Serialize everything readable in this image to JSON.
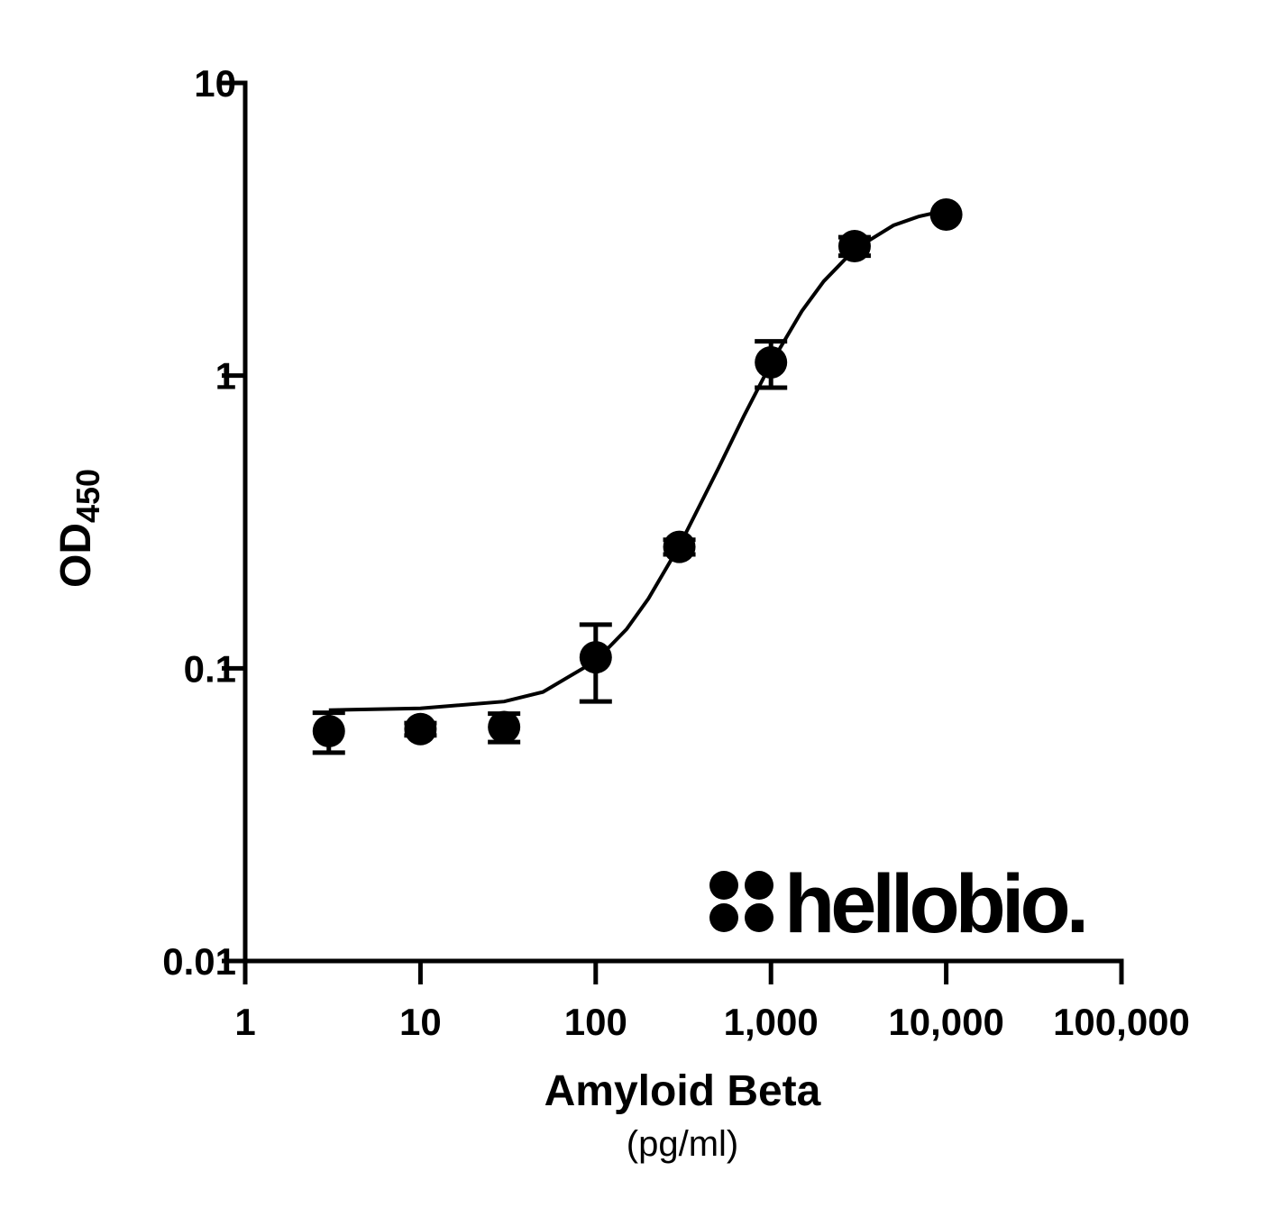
{
  "chart_data": {
    "type": "scatter",
    "xlabel": "Amyloid Beta",
    "xlabel_unit": "(pg/ml)",
    "ylabel": "OD",
    "ylabel_sub": "450",
    "x": [
      3,
      10,
      30,
      100,
      300,
      1000,
      3000,
      10000
    ],
    "values": [
      0.061,
      0.062,
      0.063,
      0.109,
      0.26,
      1.11,
      2.77,
      3.55
    ],
    "errors": [
      0.0095,
      0.003,
      0.007,
      0.032,
      0.015,
      0.2,
      0.2,
      0
    ],
    "color": "#000000",
    "fit": {
      "x": [
        3,
        10,
        30,
        50,
        100,
        150,
        200,
        300,
        500,
        700,
        1000,
        1500,
        2000,
        3000,
        5000,
        7000,
        10000
      ],
      "y": [
        0.072,
        0.073,
        0.077,
        0.083,
        0.106,
        0.136,
        0.173,
        0.262,
        0.481,
        0.727,
        1.1,
        1.66,
        2.1,
        2.7,
        3.26,
        3.5,
        3.67
      ]
    },
    "xscale": "log",
    "yscale": "log",
    "xlim": [
      1,
      100000
    ],
    "ylim": [
      0.01,
      10
    ],
    "xticks": [
      1,
      10,
      100,
      {
        "value": 1000,
        "label": "1,000"
      },
      {
        "value": 10000,
        "label": "10,000"
      },
      {
        "value": 100000,
        "label": "100,000"
      }
    ],
    "yticks": [
      0.01,
      0.1,
      1,
      10
    ],
    "logo": "hellobio."
  }
}
